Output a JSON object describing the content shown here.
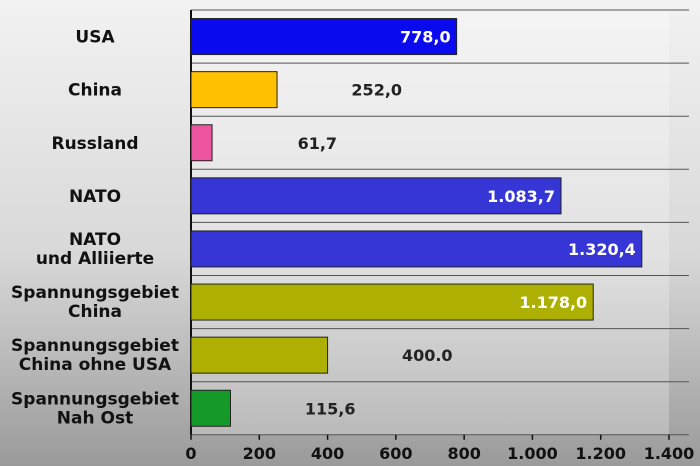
{
  "chart_data": {
    "type": "bar",
    "orientation": "horizontal",
    "title": "",
    "xlabel": "",
    "ylabel": "",
    "xlim": [
      0,
      1400
    ],
    "x_ticks": [
      0,
      200,
      400,
      600,
      800,
      1000,
      1200,
      1400
    ],
    "x_tick_labels": [
      "0",
      "200",
      "400",
      "600",
      "800",
      "1.000",
      "1.200",
      "1.400"
    ],
    "grid": "horizontal lines between categories",
    "legend": "none",
    "categories": [
      [
        "USA"
      ],
      [
        "China"
      ],
      [
        "Russland"
      ],
      [
        "NATO"
      ],
      [
        "NATO",
        "und Alliierte"
      ],
      [
        "Spannungsgebiet",
        "China"
      ],
      [
        "Spannungsgebiet",
        "China ohne USA"
      ],
      [
        "Spannungsgebiet",
        "Nah Ost"
      ]
    ],
    "values": [
      778.0,
      252.0,
      61.7,
      1083.7,
      1320.4,
      1178.0,
      400.0,
      115.6
    ],
    "value_labels": [
      "778,0",
      "252,0",
      "61,7",
      "1.083,7",
      "1.320,4",
      "1.178,0",
      "400.0",
      "115,6"
    ],
    "bar_colors": [
      "#0a0aee",
      "#ffc000",
      "#ee55a0",
      "#3636d6",
      "#3636d6",
      "#adb000",
      "#adb000",
      "#159a2a"
    ],
    "value_label_colors": [
      "#ffffff",
      "#222222",
      "#222222",
      "#ffffff",
      "#ffffff",
      "#ffffff",
      "#222222",
      "#222222"
    ]
  }
}
